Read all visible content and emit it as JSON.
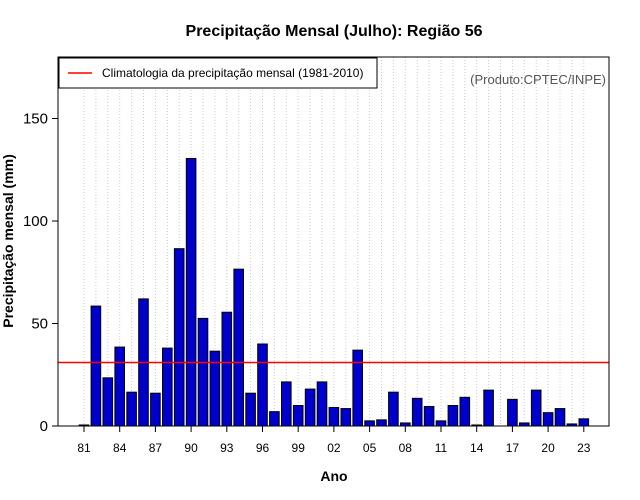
{
  "chart_data": {
    "type": "bar",
    "title": "Precipitação Mensal (Julho): Região 56",
    "xlabel": "Ano",
    "ylabel": "Precipitação mensal (mm)",
    "ylim": [
      0,
      175
    ],
    "yticks": [
      0,
      50,
      100,
      150
    ],
    "xtick_labels": [
      "81",
      "84",
      "87",
      "90",
      "93",
      "96",
      "99",
      "02",
      "05",
      "08",
      "11",
      "14",
      "17",
      "20",
      "23"
    ],
    "categories": [
      "1981",
      "1982",
      "1983",
      "1984",
      "1985",
      "1986",
      "1987",
      "1988",
      "1989",
      "1990",
      "1991",
      "1992",
      "1993",
      "1994",
      "1995",
      "1996",
      "1997",
      "1998",
      "1999",
      "2000",
      "2001",
      "2002",
      "2003",
      "2004",
      "2005",
      "2006",
      "2007",
      "2008",
      "2009",
      "2010",
      "2011",
      "2012",
      "2013",
      "2014",
      "2015",
      "2016",
      "2017",
      "2018",
      "2019",
      "2020",
      "2021",
      "2022",
      "2023"
    ],
    "values": [
      0.5,
      58.5,
      23.5,
      38.5,
      16.5,
      62,
      16,
      38,
      86.5,
      130.5,
      52.5,
      36.5,
      55.5,
      76.5,
      16,
      40,
      7,
      21.5,
      10,
      18,
      21.5,
      9,
      8.5,
      37,
      2.5,
      3,
      16.5,
      1.5,
      13.5,
      9.5,
      2.5,
      10,
      14,
      0.5,
      17.5,
      0,
      13,
      1.5,
      17.5,
      6.5,
      8.5,
      1,
      3.5
    ],
    "climatology": 31,
    "legend": {
      "label": "Climatologia da precipitação mensal (1981-2010)",
      "position": "top-left"
    },
    "annotation": "(Produto:CPTEC/INPE)",
    "grid": "vertical-dotted",
    "colors": {
      "bar_fill": "#0000cc",
      "bar_edge": "#000000",
      "climatology_line": "#ff0000",
      "grid": "#cccccc"
    }
  }
}
